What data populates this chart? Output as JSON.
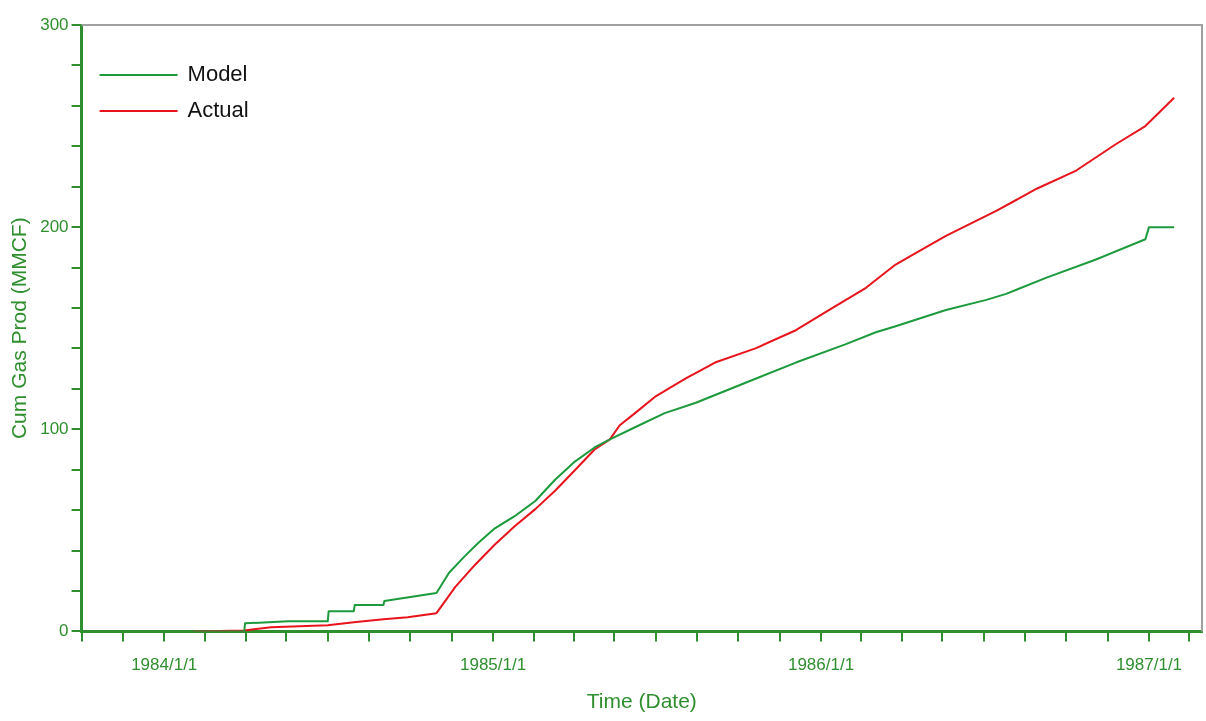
{
  "chart_data": {
    "type": "line",
    "xlabel": "Time (Date)",
    "ylabel": "Cum Gas Prod (MMCF)",
    "xlim": [
      "1983-10-01",
      "1987-03-01"
    ],
    "xticks": [
      {
        "value": "1983-10-01",
        "label": null
      },
      {
        "value": "1983-11-16",
        "label": null
      },
      {
        "value": "1984-01-01",
        "label": "1984/1/1"
      },
      {
        "value": "1984-02-15",
        "label": null
      },
      {
        "value": "1984-04-01",
        "label": null
      },
      {
        "value": "1984-05-16",
        "label": null
      },
      {
        "value": "1984-07-01",
        "label": null
      },
      {
        "value": "1984-08-16",
        "label": null
      },
      {
        "value": "1984-10-01",
        "label": null
      },
      {
        "value": "1984-11-16",
        "label": null
      },
      {
        "value": "1985-01-01",
        "label": "1985/1/1"
      },
      {
        "value": "1985-02-15",
        "label": null
      },
      {
        "value": "1985-04-01",
        "label": null
      },
      {
        "value": "1985-05-16",
        "label": null
      },
      {
        "value": "1985-07-01",
        "label": null
      },
      {
        "value": "1985-08-16",
        "label": null
      },
      {
        "value": "1985-10-01",
        "label": null
      },
      {
        "value": "1985-11-16",
        "label": null
      },
      {
        "value": "1986-01-01",
        "label": "1986/1/1"
      },
      {
        "value": "1986-02-15",
        "label": null
      },
      {
        "value": "1986-04-01",
        "label": null
      },
      {
        "value": "1986-05-16",
        "label": null
      },
      {
        "value": "1986-07-01",
        "label": null
      },
      {
        "value": "1986-08-16",
        "label": null
      },
      {
        "value": "1986-10-01",
        "label": null
      },
      {
        "value": "1986-11-16",
        "label": null
      },
      {
        "value": "1987-01-01",
        "label": "1987/1/1"
      },
      {
        "value": "1987-02-15",
        "label": null
      }
    ],
    "ylim": [
      0,
      300
    ],
    "yticks": [
      0,
      {
        "value": 20,
        "label": null
      },
      {
        "value": 40,
        "label": null
      },
      {
        "value": 60,
        "label": null
      },
      {
        "value": 80,
        "label": null
      },
      100,
      {
        "value": 120,
        "label": null
      },
      {
        "value": 140,
        "label": null
      },
      {
        "value": 160,
        "label": null
      },
      {
        "value": 180,
        "label": null
      },
      200,
      {
        "value": 220,
        "label": null
      },
      {
        "value": 240,
        "label": null
      },
      {
        "value": 260,
        "label": null
      },
      {
        "value": 280,
        "label": null
      },
      300
    ],
    "grid": false,
    "legend": "top left",
    "marker": "none",
    "line_style": "solid",
    "series": [
      {
        "name": "Model",
        "color": "#1c9a3c",
        "x": [
          "1984-02-02",
          "1984-03-30",
          "1984-03-31",
          "1984-05-18",
          "1984-07-01",
          "1984-07-02",
          "1984-07-30",
          "1984-07-31",
          "1984-09-01",
          "1984-09-02",
          "1984-10-30",
          "1984-11-13",
          "1984-11-30",
          "1984-12-16",
          "1985-01-03",
          "1985-01-25",
          "1985-02-17",
          "1985-03-11",
          "1985-04-02",
          "1985-04-24",
          "1985-05-11",
          "1985-06-08",
          "1985-07-11",
          "1985-08-14",
          "1985-10-09",
          "1985-12-04",
          "1986-01-28",
          "1986-03-03",
          "1986-03-25",
          "1986-05-20",
          "1986-07-04",
          "1986-07-26",
          "1986-09-09",
          "1986-11-03",
          "1986-12-28",
          "1987-01-01",
          "1987-01-29"
        ],
        "values": [
          0,
          0,
          4,
          5,
          5,
          10,
          10,
          13,
          13,
          15,
          19,
          29,
          37,
          44,
          51,
          57,
          64.5,
          75,
          84,
          91,
          95,
          101,
          108,
          113,
          123,
          133,
          142,
          148,
          151,
          159,
          164,
          167,
          175,
          184,
          194,
          200,
          200
        ]
      },
      {
        "name": "Actual",
        "color": "#e8141c",
        "x": [
          "1984-02-02",
          "1984-03-30",
          "1984-04-29",
          "1984-07-01",
          "1984-07-30",
          "1984-09-01",
          "1984-09-28",
          "1984-10-30",
          "1984-11-20",
          "1984-12-12",
          "1985-01-03",
          "1985-01-25",
          "1985-02-17",
          "1985-03-11",
          "1985-04-02",
          "1985-04-24",
          "1985-05-11",
          "1985-05-22",
          "1985-06-08",
          "1985-06-30",
          "1985-08-03",
          "1985-09-05",
          "1985-10-20",
          "1985-12-04",
          "1986-01-06",
          "1986-02-20",
          "1986-03-25",
          "1986-05-20",
          "1986-07-15",
          "1986-08-29",
          "1986-10-12",
          "1986-11-25",
          "1986-12-28",
          "1987-01-29"
        ],
        "values": [
          0,
          0.5,
          2,
          3,
          4.5,
          6,
          7,
          9,
          22,
          33,
          43,
          52,
          60.5,
          69.6,
          79.7,
          90,
          95,
          102,
          108,
          116,
          125,
          133,
          140,
          149,
          158,
          170,
          181.5,
          195.7,
          208,
          219,
          228,
          241,
          250,
          264
        ]
      }
    ]
  }
}
